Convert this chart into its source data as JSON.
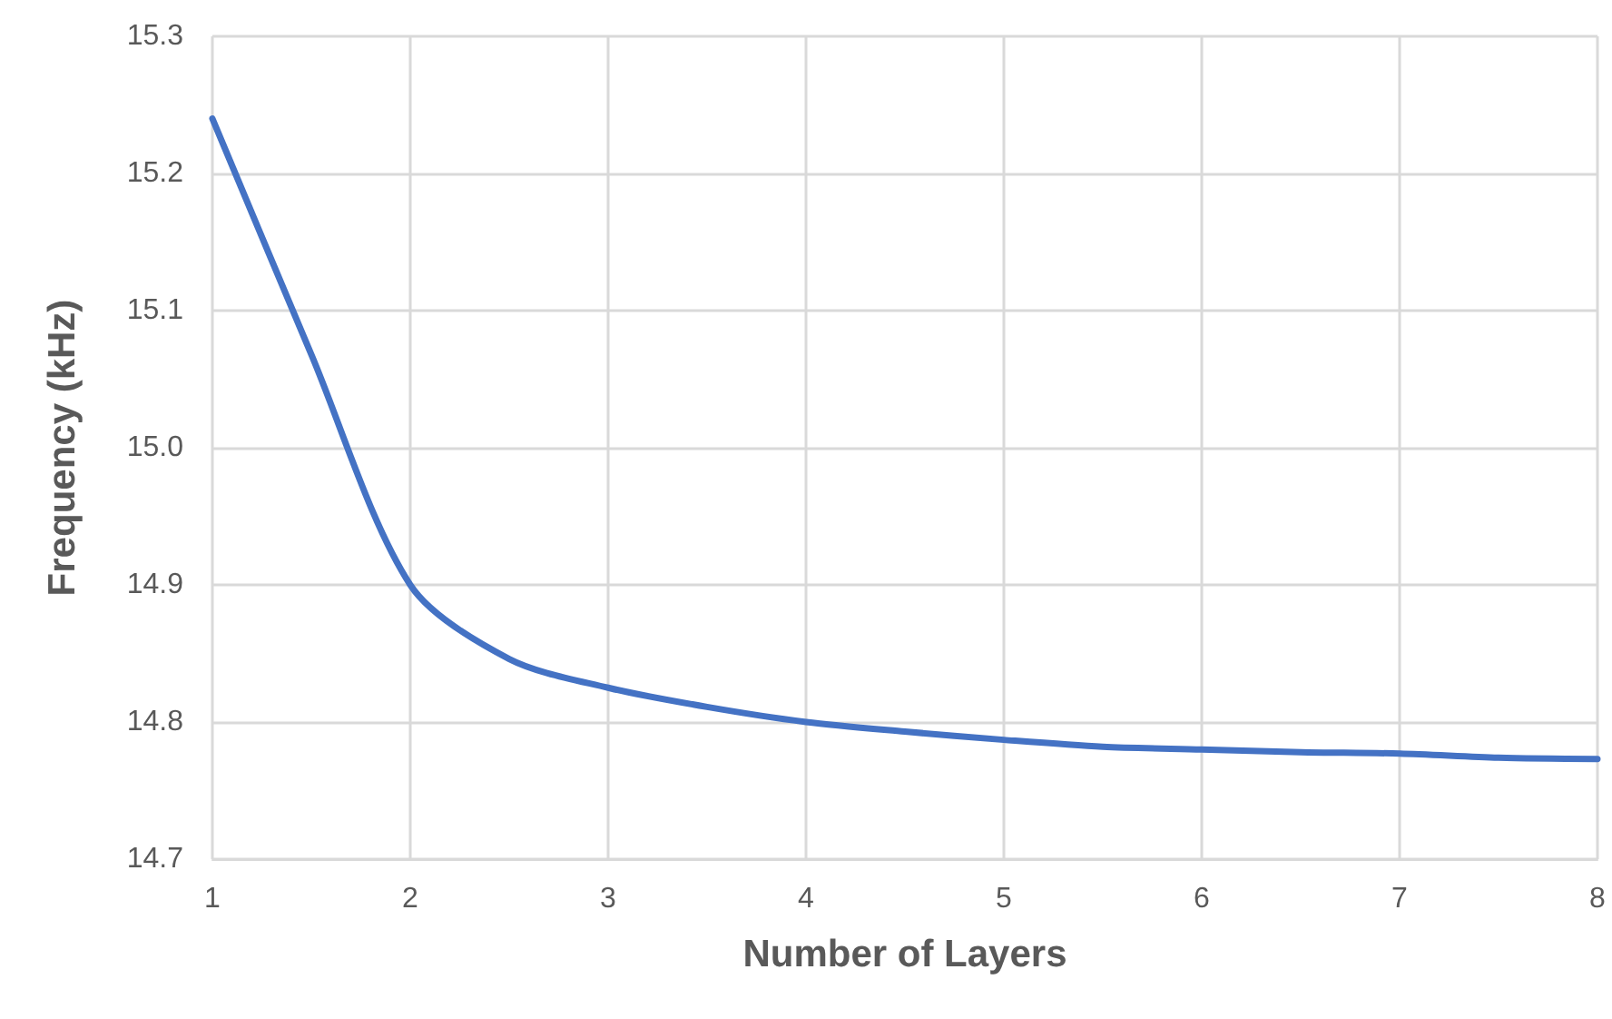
{
  "chart_data": {
    "type": "line",
    "xlabel": "Number of Layers",
    "ylabel": "Frequency (kHz)",
    "x": [
      1,
      1.5,
      2,
      2.5,
      3,
      3.5,
      4,
      4.5,
      5,
      5.5,
      6,
      6.5,
      7,
      7.5,
      8
    ],
    "series": [
      {
        "color": "#4472c4",
        "values": [
          15.24,
          15.068,
          14.9,
          14.846,
          14.825,
          14.811,
          14.8,
          14.793,
          14.787,
          14.782,
          14.78,
          14.778,
          14.777,
          14.774,
          14.773
        ]
      }
    ],
    "xlim": [
      1,
      8
    ],
    "xticks": [
      1,
      2,
      3,
      4,
      5,
      6,
      7,
      8
    ],
    "ylim": [
      14.7,
      15.3
    ],
    "yticks": [
      {
        "value": 14.7,
        "label": "14.7"
      },
      {
        "value": 14.8,
        "label": "14.8"
      },
      {
        "value": 14.9,
        "label": "14.9"
      },
      {
        "value": 15.0,
        "label": "15.0"
      },
      {
        "value": 15.1,
        "label": "15.1"
      },
      {
        "value": 15.2,
        "label": "15.2"
      },
      {
        "value": 15.3,
        "label": "15.3"
      }
    ],
    "grid": true,
    "marker": "none",
    "line_style": "solid"
  }
}
